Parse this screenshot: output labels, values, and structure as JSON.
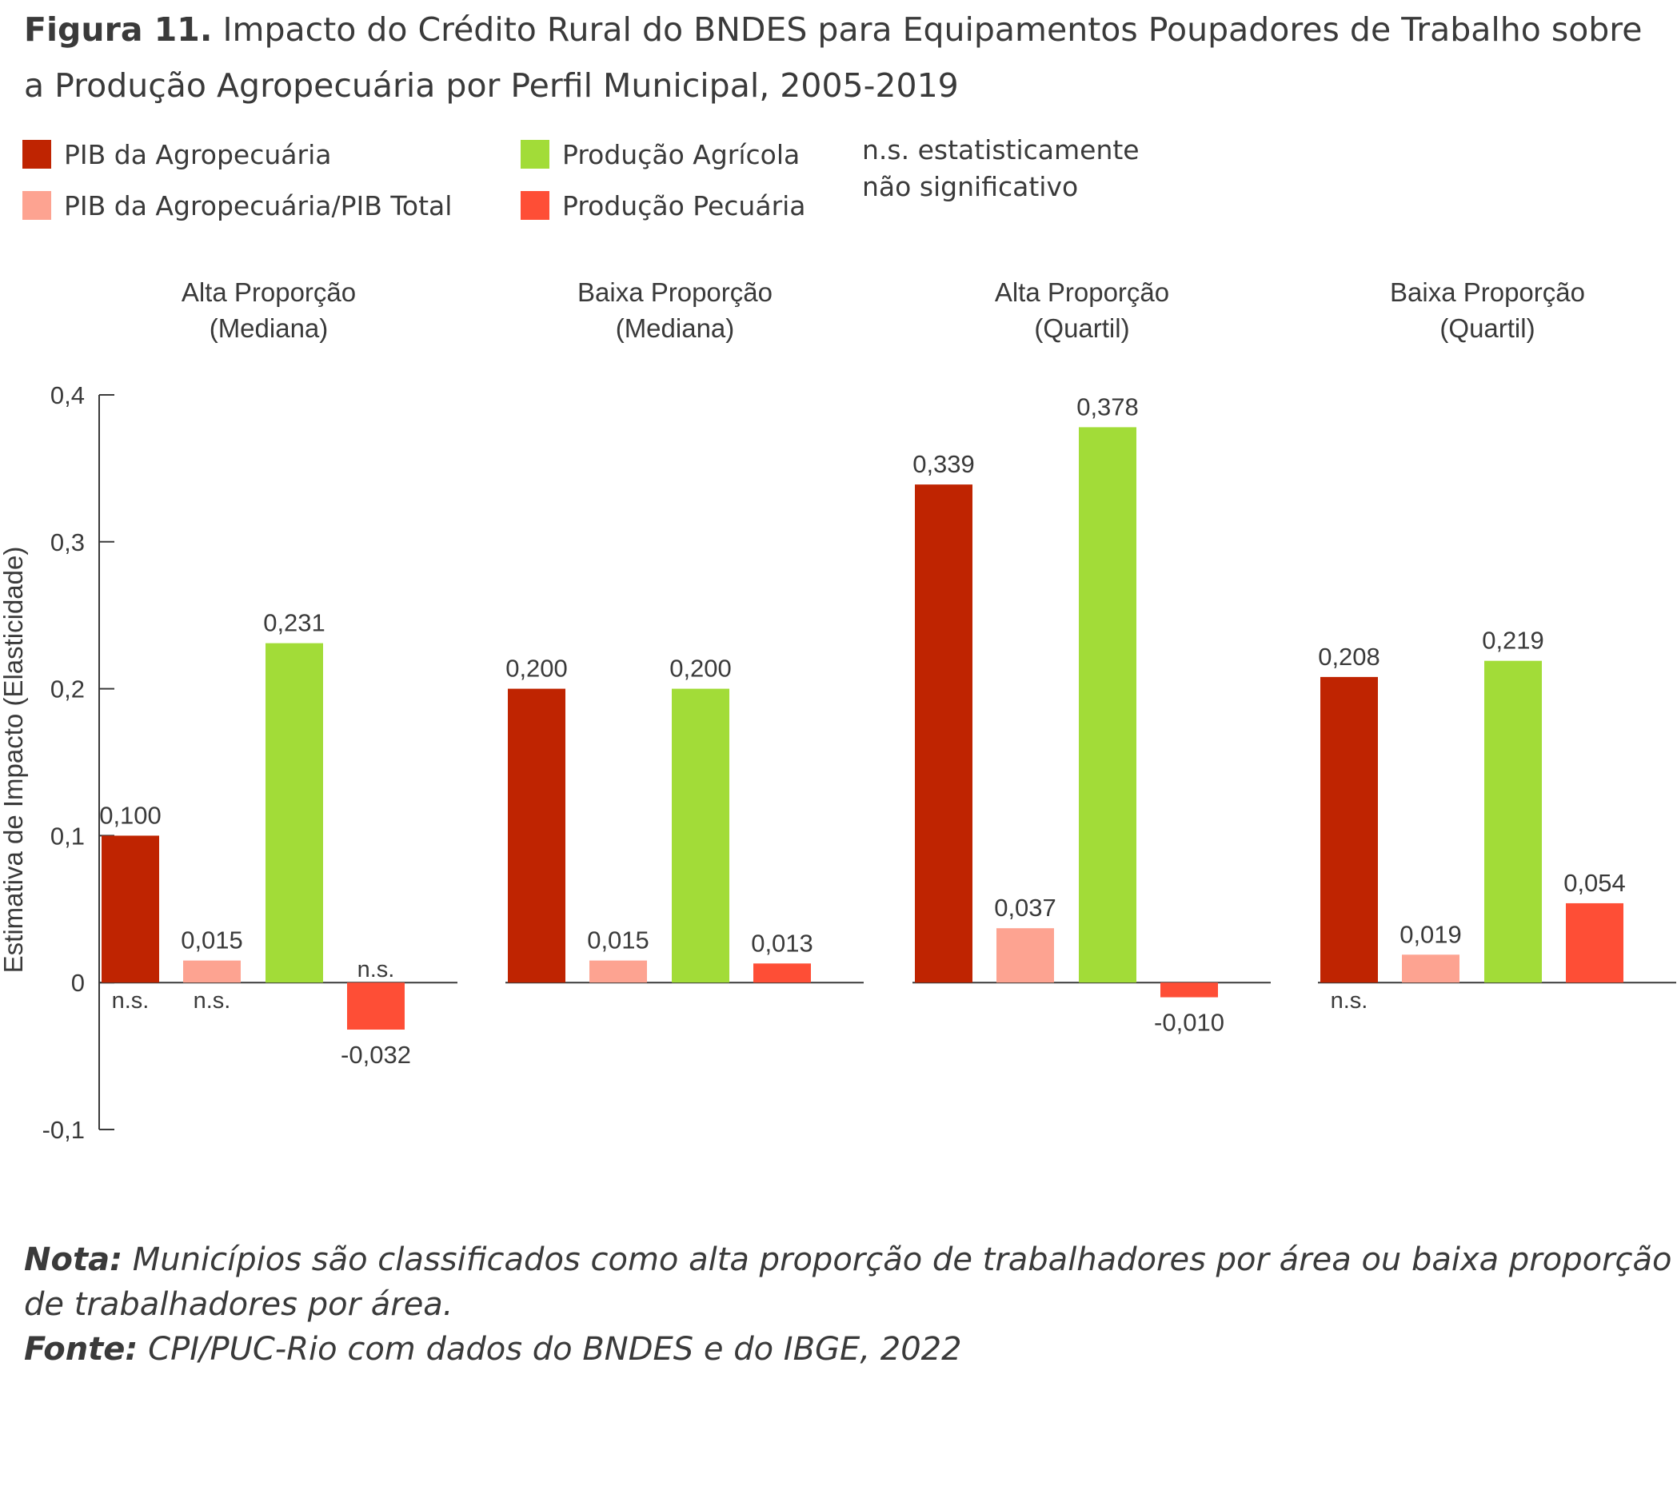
{
  "figure": {
    "title_label": "Figura 11.",
    "title_text": "Impacto do Crédito Rural do BNDES para Equipamentos Poupadores de Trabalho sobre a Produção Agropecuária por Perfil Municipal, 2005-2019",
    "legend": [
      {
        "label": "PIB da Agropecuária",
        "color": "#bf2401"
      },
      {
        "label": "PIB da Agropecuária/PIB Total",
        "color": "#fda391"
      },
      {
        "label": "Produção Agrícola",
        "color": "#a2dc38"
      },
      {
        "label": "Produção Pecuária",
        "color": "#fe4e36"
      }
    ],
    "ns_note": [
      "n.s. estatisticamente",
      "não significativo"
    ],
    "nota_label": "Nota:",
    "nota_text": "Municípios são classificados como alta proporção de trabalhadores por área ou baixa proporção de trabalhadores por área.",
    "fonte_label": "Fonte:",
    "fonte_text": "CPI/PUC-Rio com dados do BNDES e do IBGE, 2022"
  },
  "chart_data": {
    "type": "bar",
    "ylabel": "Estimativa de Impacto (Elasticidade)",
    "ylim": [
      -0.1,
      0.4
    ],
    "yticks": [
      -0.1,
      0,
      0.1,
      0.2,
      0.3,
      0.4
    ],
    "ytick_labels": [
      "-0,1",
      "0",
      "0,1",
      "0,2",
      "0,3",
      "0,4"
    ],
    "ns_label": "n.s.",
    "legend_position": "top",
    "series_names": [
      "PIB da Agropecuária",
      "PIB da Agropecuária/PIB Total",
      "Produção Agrícola",
      "Produção Pecuária"
    ],
    "series_colors": [
      "#bf2401",
      "#fda391",
      "#a2dc38",
      "#fe4e36"
    ],
    "groups": [
      {
        "title": [
          "Alta Proporção",
          "(Mediana)"
        ],
        "values": [
          0.1,
          0.015,
          0.231,
          -0.032
        ],
        "labels": [
          "0,100",
          "0,015",
          "0,231",
          "-0,032"
        ],
        "ns": [
          true,
          true,
          false,
          true
        ]
      },
      {
        "title": [
          "Baixa Proporção",
          "(Mediana)"
        ],
        "values": [
          0.2,
          0.015,
          0.2,
          0.013
        ],
        "labels": [
          "0,200",
          "0,015",
          "0,200",
          "0,013"
        ],
        "ns": [
          false,
          false,
          false,
          false
        ]
      },
      {
        "title": [
          "Alta Proporção",
          "(Quartil)"
        ],
        "values": [
          0.339,
          0.037,
          0.378,
          -0.01
        ],
        "labels": [
          "0,339",
          "0,037",
          "0,378",
          "-0,010"
        ],
        "ns": [
          false,
          false,
          false,
          false
        ]
      },
      {
        "title": [
          "Baixa Proporção",
          "(Quartil)"
        ],
        "values": [
          0.208,
          0.019,
          0.219,
          0.054
        ],
        "labels": [
          "0,208",
          "0,019",
          "0,219",
          "0,054"
        ],
        "ns": [
          true,
          false,
          false,
          false
        ]
      }
    ]
  }
}
